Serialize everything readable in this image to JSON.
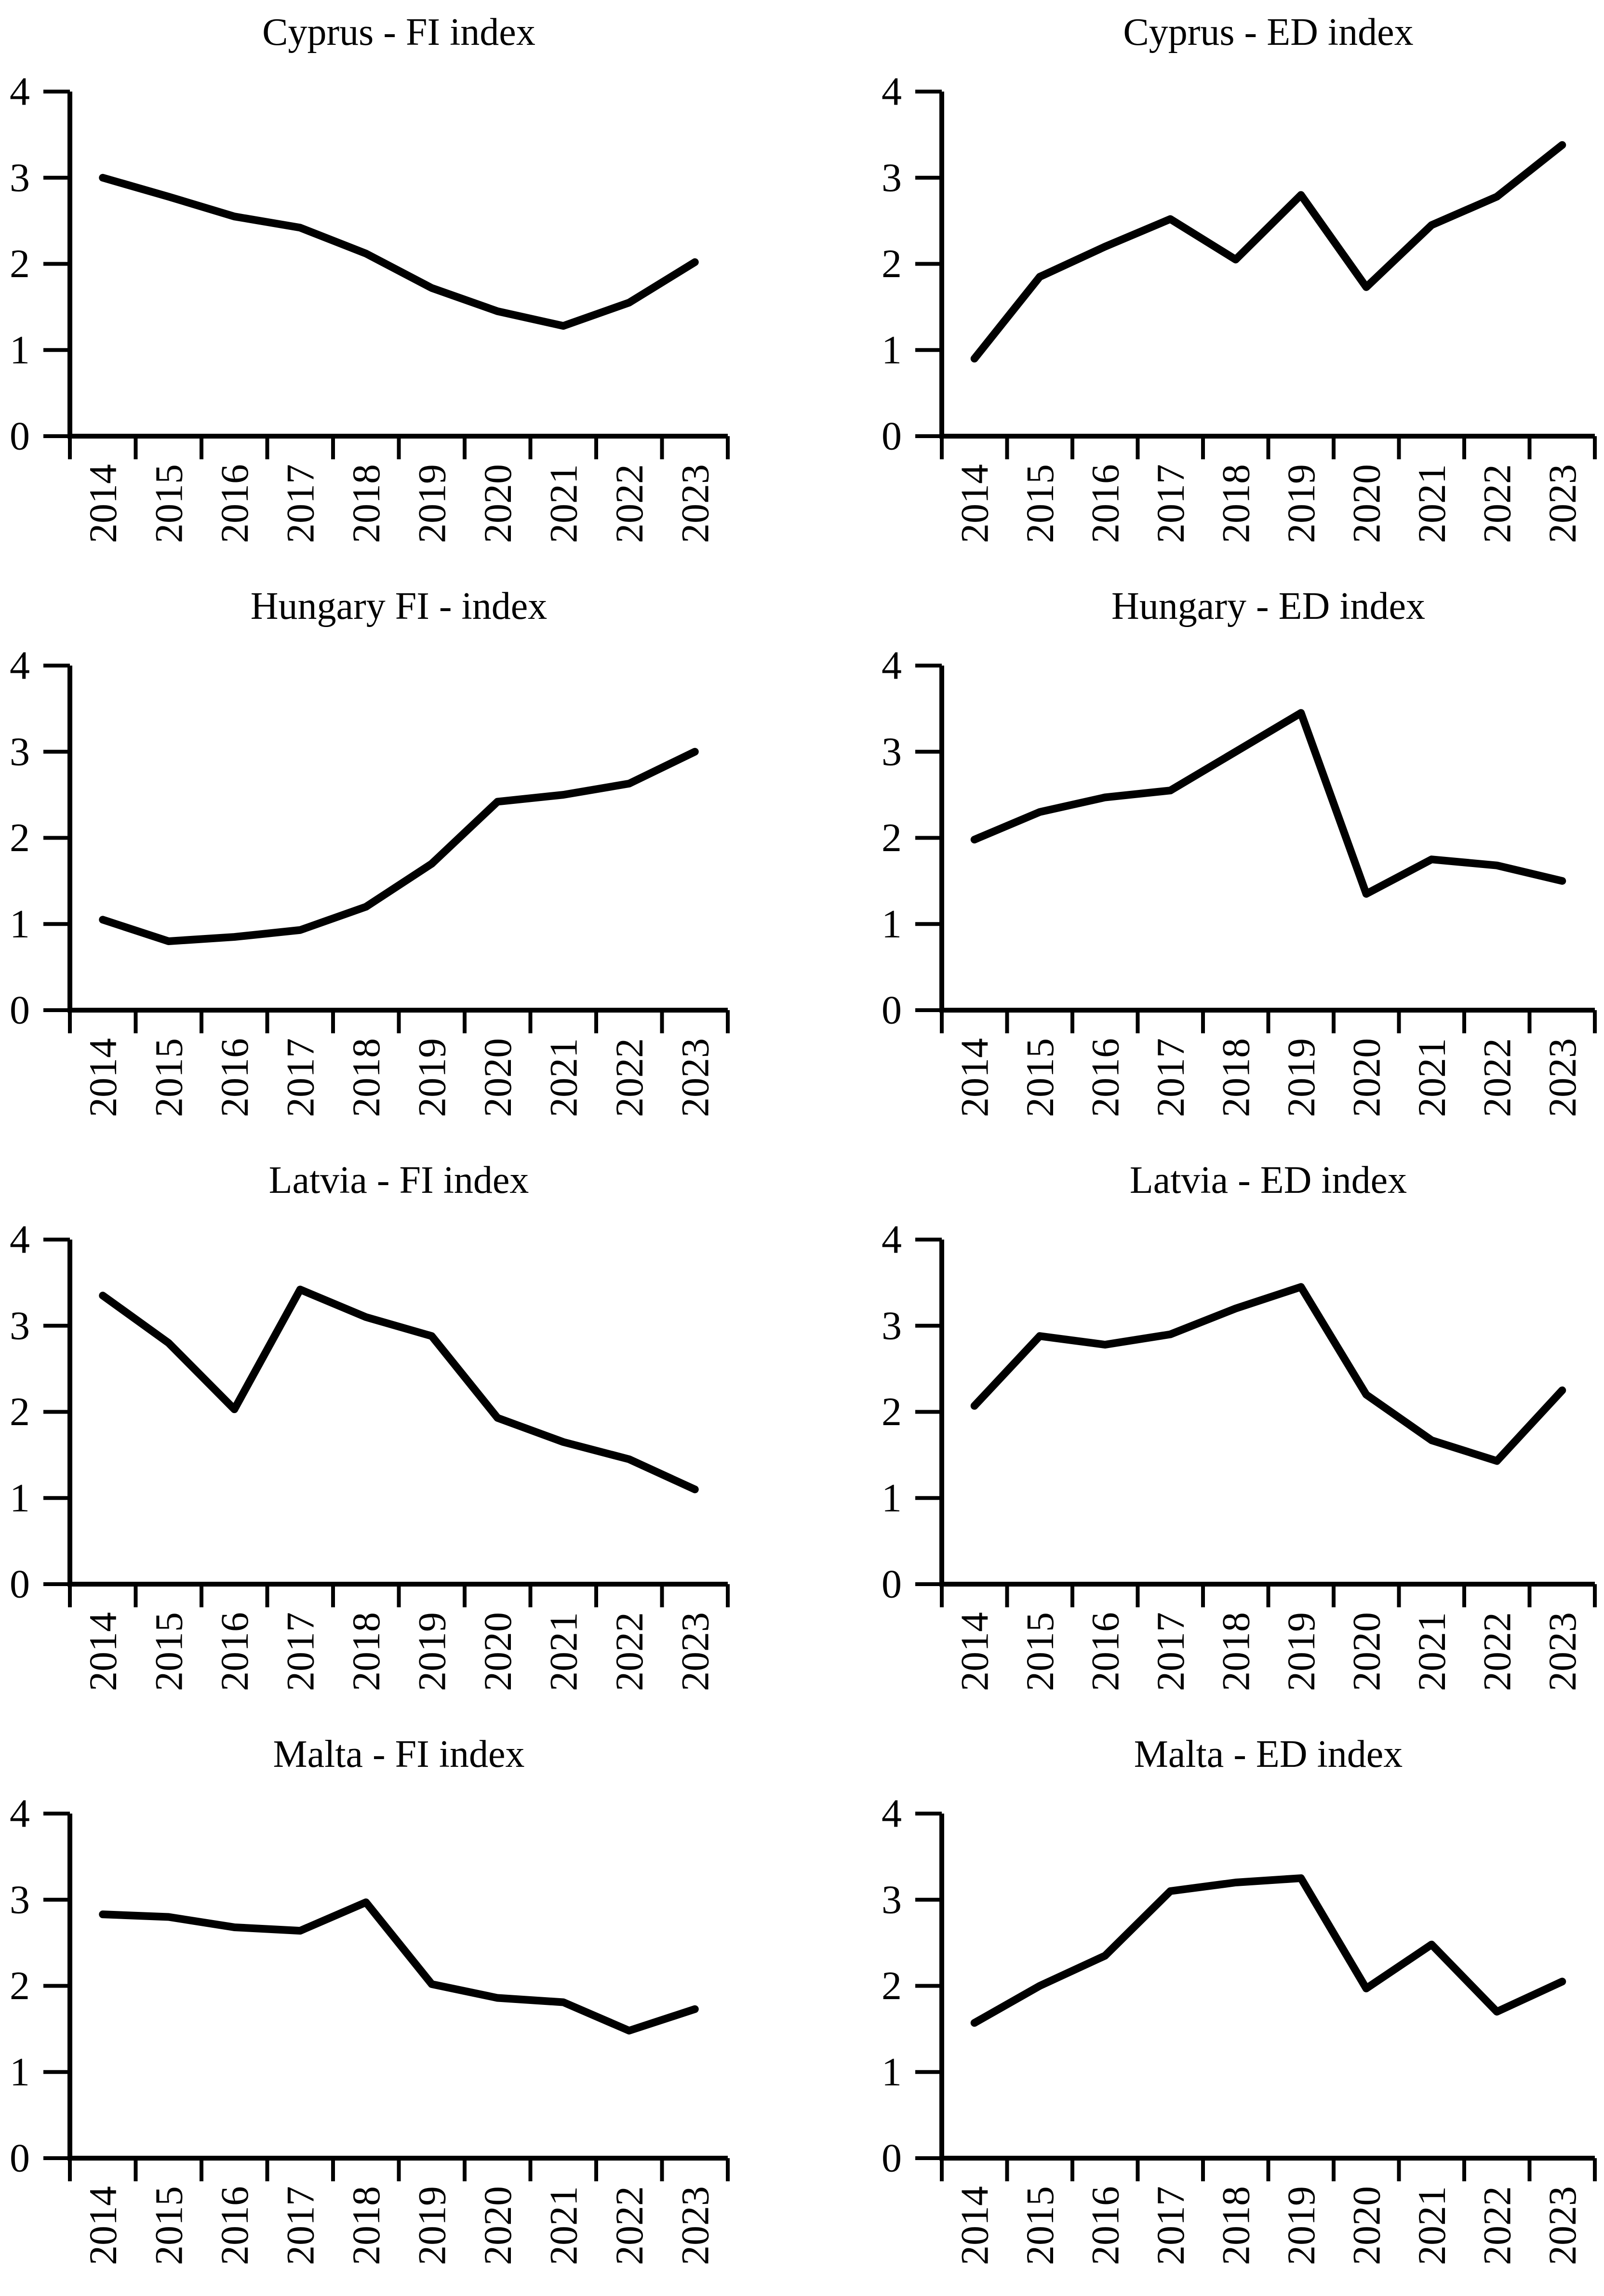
{
  "page": {
    "background": "#ffffff",
    "line_color": "#000000"
  },
  "chart_data": [
    {
      "type": "line",
      "title": "Cyprus - FI index",
      "x": [
        "2014",
        "2015",
        "2016",
        "2017",
        "2018",
        "2019",
        "2020",
        "2021",
        "2022",
        "2023"
      ],
      "values": [
        3.0,
        2.78,
        2.55,
        2.42,
        2.12,
        1.72,
        1.45,
        1.28,
        1.55,
        2.02
      ],
      "ylim": [
        0,
        4
      ],
      "yticks": [
        0,
        1,
        2,
        3,
        4
      ],
      "grid": false,
      "legend": "none"
    },
    {
      "type": "line",
      "title": "Cyprus - ED index",
      "x": [
        "2014",
        "2015",
        "2016",
        "2017",
        "2018",
        "2019",
        "2020",
        "2021",
        "2022",
        "2023"
      ],
      "values": [
        0.9,
        1.85,
        2.2,
        2.52,
        2.05,
        2.8,
        1.73,
        2.45,
        2.78,
        3.38
      ],
      "ylim": [
        0,
        4
      ],
      "yticks": [
        0,
        1,
        2,
        3,
        4
      ],
      "grid": false,
      "legend": "none"
    },
    {
      "type": "line",
      "title": "Hungary FI - index",
      "x": [
        "2014",
        "2015",
        "2016",
        "2017",
        "2018",
        "2019",
        "2020",
        "2021",
        "2022",
        "2023"
      ],
      "values": [
        1.05,
        0.8,
        0.85,
        0.93,
        1.2,
        1.7,
        2.42,
        2.5,
        2.63,
        3.0
      ],
      "ylim": [
        0,
        4
      ],
      "yticks": [
        0,
        1,
        2,
        3,
        4
      ],
      "grid": false,
      "legend": "none"
    },
    {
      "type": "line",
      "title": "Hungary - ED index",
      "x": [
        "2014",
        "2015",
        "2016",
        "2017",
        "2018",
        "2019",
        "2020",
        "2021",
        "2022",
        "2023"
      ],
      "values": [
        1.98,
        2.3,
        2.47,
        2.55,
        3.0,
        3.45,
        1.35,
        1.75,
        1.68,
        1.5
      ],
      "ylim": [
        0,
        4
      ],
      "yticks": [
        0,
        1,
        2,
        3,
        4
      ],
      "grid": false,
      "legend": "none"
    },
    {
      "type": "line",
      "title": "Latvia - FI index",
      "x": [
        "2014",
        "2015",
        "2016",
        "2017",
        "2018",
        "2019",
        "2020",
        "2021",
        "2022",
        "2023"
      ],
      "values": [
        3.35,
        2.8,
        2.03,
        3.42,
        3.1,
        2.88,
        1.93,
        1.65,
        1.45,
        1.1
      ],
      "ylim": [
        0,
        4
      ],
      "yticks": [
        0,
        1,
        2,
        3,
        4
      ],
      "grid": false,
      "legend": "none"
    },
    {
      "type": "line",
      "title": "Latvia - ED index",
      "x": [
        "2014",
        "2015",
        "2016",
        "2017",
        "2018",
        "2019",
        "2020",
        "2021",
        "2022",
        "2023"
      ],
      "values": [
        2.07,
        2.88,
        2.78,
        2.9,
        3.2,
        3.45,
        2.2,
        1.67,
        1.43,
        2.25
      ],
      "ylim": [
        0,
        4
      ],
      "yticks": [
        0,
        1,
        2,
        3,
        4
      ],
      "grid": false,
      "legend": "none"
    },
    {
      "type": "line",
      "title": "Malta - FI index",
      "x": [
        "2014",
        "2015",
        "2016",
        "2017",
        "2018",
        "2019",
        "2020",
        "2021",
        "2022",
        "2023"
      ],
      "values": [
        2.83,
        2.8,
        2.68,
        2.64,
        2.97,
        2.02,
        1.86,
        1.81,
        1.48,
        1.73
      ],
      "ylim": [
        0,
        4
      ],
      "yticks": [
        0,
        1,
        2,
        3,
        4
      ],
      "grid": false,
      "legend": "none"
    },
    {
      "type": "line",
      "title": "Malta - ED index",
      "x": [
        "2014",
        "2015",
        "2016",
        "2017",
        "2018",
        "2019",
        "2020",
        "2021",
        "2022",
        "2023"
      ],
      "values": [
        1.57,
        2.0,
        2.35,
        3.1,
        3.2,
        3.25,
        1.97,
        2.48,
        1.7,
        2.05
      ],
      "ylim": [
        0,
        4
      ],
      "yticks": [
        0,
        1,
        2,
        3,
        4
      ],
      "grid": false,
      "legend": "none"
    }
  ]
}
